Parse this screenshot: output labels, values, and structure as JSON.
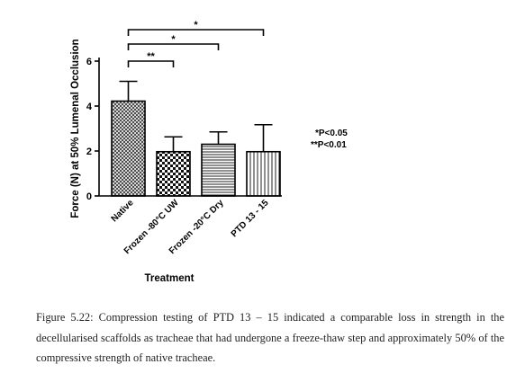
{
  "chart_data": {
    "type": "bar",
    "title": "",
    "xlabel": "Treatment",
    "ylabel": "Force (N) at 50% Lumenal Occlusion",
    "ylim": [
      0,
      6
    ],
    "yticks": [
      0,
      2,
      4,
      6
    ],
    "categories": [
      "Native",
      "Frozen -80°C UW",
      "Frozen -20°C Dry",
      "PTD 13 - 15"
    ],
    "values": [
      4.22,
      1.97,
      2.3,
      1.97
    ],
    "error_upper": [
      0.88,
      0.66,
      0.55,
      1.2
    ],
    "patterns": [
      "crosshatch",
      "checker",
      "horizontal-lines",
      "vertical-lines"
    ],
    "comparisons": [
      {
        "from": 0,
        "to": 1,
        "label": "**",
        "level": 1
      },
      {
        "from": 0,
        "to": 2,
        "label": "*",
        "level": 2
      },
      {
        "from": 0,
        "to": 3,
        "label": "*",
        "level": 3
      }
    ],
    "significance_legend": [
      "*P<0.05",
      "**P<0.01"
    ],
    "grid": false,
    "legend": "right"
  },
  "caption": "Figure 5.22: Compression testing of PTD 13 – 15 indicated a comparable loss in strength in the decellularised scaffolds as tracheae that had undergone a freeze-thaw step and approximately 50% of the compressive strength of native tracheae."
}
